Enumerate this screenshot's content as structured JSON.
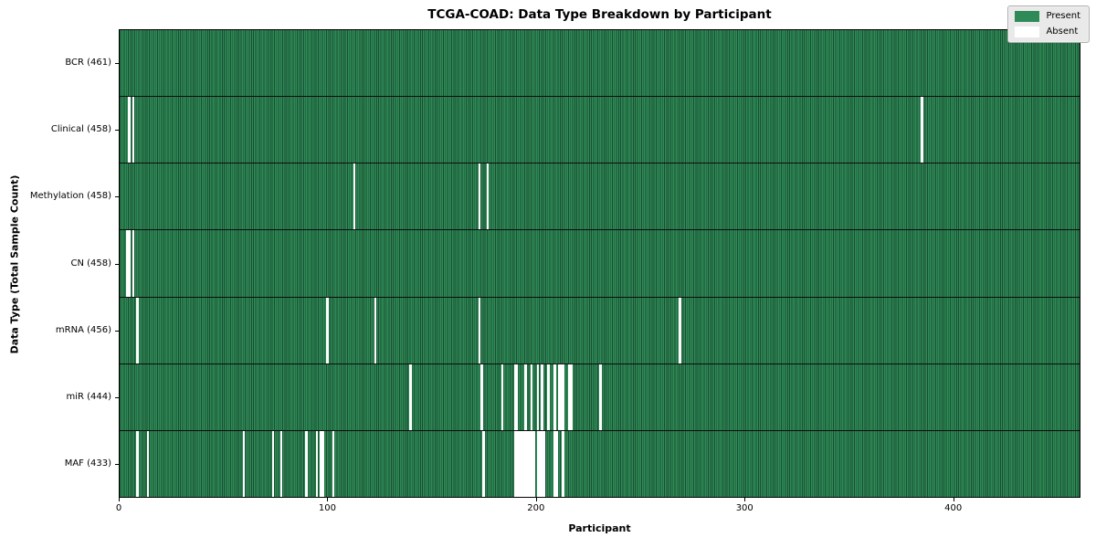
{
  "title": "TCGA-COAD: Data Type Breakdown by Participant",
  "axes": {
    "xlabel": "Participant",
    "ylabel": "Data Type (Total Sample Count)",
    "x_ticks": [
      0,
      100,
      200,
      300,
      400
    ]
  },
  "legend": {
    "items": [
      {
        "label": "Present",
        "color": "#2e8b57"
      },
      {
        "label": "Absent",
        "color": "#ffffff"
      }
    ]
  },
  "colors": {
    "present": "#2e8b57",
    "present_edge": "#1b4d32",
    "absent": "#ffffff",
    "frame": "#000000",
    "legend_bg": "#e9e9e9"
  },
  "chart_data": {
    "type": "heatmap",
    "title": "TCGA-COAD: Data Type Breakdown by Participant",
    "xlabel": "Participant",
    "ylabel": "Data Type (Total Sample Count)",
    "n_participants": 461,
    "x_ticks": [
      0,
      100,
      200,
      300,
      400
    ],
    "legend": [
      "Present",
      "Absent"
    ],
    "legend_position": "upper right",
    "rows": [
      {
        "name": "bcr",
        "label": "BCR (461)",
        "present_count": 461,
        "absent_participants": []
      },
      {
        "name": "clinical",
        "label": "Clinical (458)",
        "present_count": 458,
        "absent_participants": [
          4,
          6,
          384
        ]
      },
      {
        "name": "methylation",
        "label": "Methylation (458)",
        "present_count": 458,
        "absent_participants": [
          112,
          172,
          176
        ]
      },
      {
        "name": "cn",
        "label": "CN (458)",
        "present_count": 458,
        "absent_participants": [
          3,
          4,
          6
        ]
      },
      {
        "name": "mrna",
        "label": "mRNA (456)",
        "present_count": 456,
        "absent_participants": [
          8,
          99,
          122,
          172,
          268
        ]
      },
      {
        "name": "mir",
        "label": "miR (444)",
        "present_count": 444,
        "absent_participants": [
          139,
          173,
          183,
          189,
          190,
          194,
          197,
          200,
          202,
          205,
          208,
          210,
          211,
          212,
          215,
          216,
          230
        ]
      },
      {
        "name": "maf",
        "label": "MAF (433)",
        "present_count": 433,
        "absent_participants": [
          8,
          13,
          59,
          73,
          77,
          89,
          94,
          96,
          97,
          102,
          174,
          189,
          190,
          191,
          192,
          193,
          194,
          195,
          196,
          197,
          198,
          200,
          201,
          202,
          203,
          208,
          209,
          212
        ]
      }
    ]
  }
}
